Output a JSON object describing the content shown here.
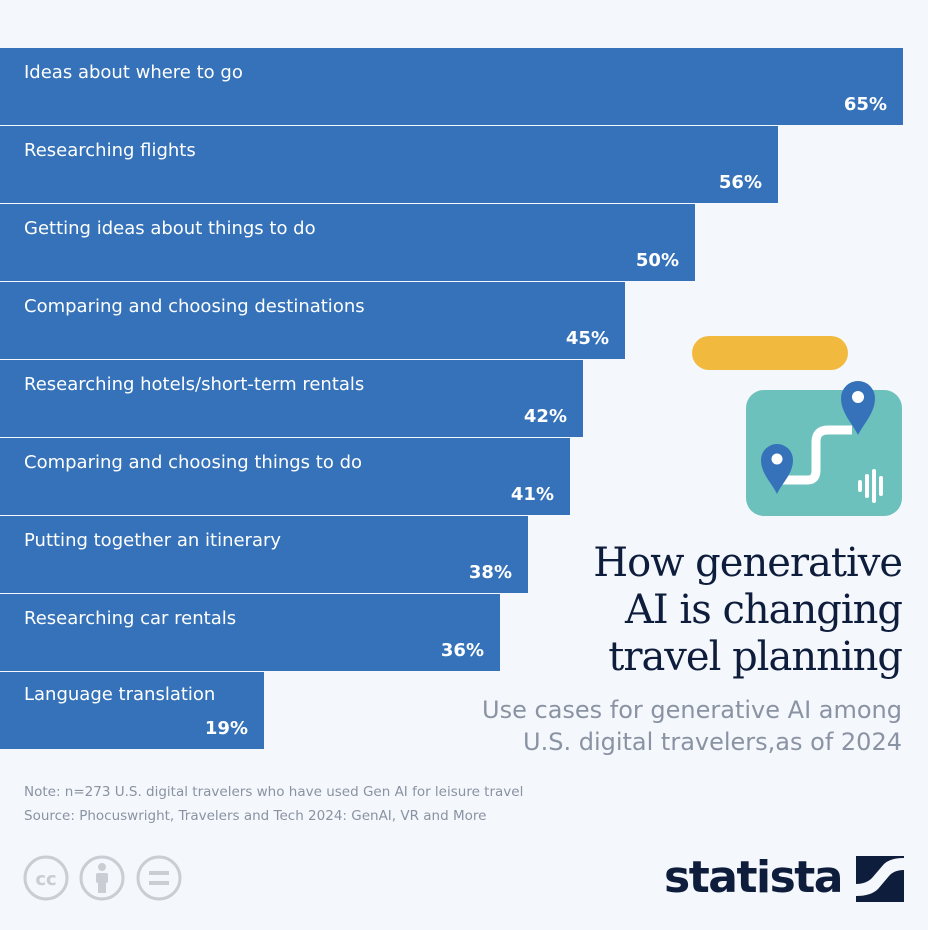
{
  "chart_data": {
    "type": "bar",
    "orientation": "horizontal",
    "categories": [
      "Ideas about where to go",
      "Researching flights",
      "Getting ideas about things to do",
      "Comparing and choosing destinations",
      "Researching hotels/short-term rentals",
      "Comparing and choosing things to do",
      "Putting together an itinerary",
      "Researching car rentals",
      "Language translation"
    ],
    "values": [
      65,
      56,
      50,
      45,
      42,
      41,
      38,
      36,
      19
    ],
    "value_labels": [
      "65%",
      "56%",
      "50%",
      "45%",
      "42%",
      "41%",
      "38%",
      "36%",
      "19%"
    ],
    "unit": "%",
    "bar_color": "#3572b9",
    "title": "How generative AI is changing travel planning",
    "subtitle": "Use cases for generative AI among U.S. digital travelers,as of 2024"
  },
  "title_lines": [
    "How generative",
    "AI is changing",
    "travel planning"
  ],
  "subtitle_lines": [
    "Use cases for generative AI among",
    "U.S. digital travelers,as of 2024"
  ],
  "note": "Note: n=273 U.S. digital travelers who have used Gen AI for leisure travel",
  "source": "Source: Phocuswright, Travelers and Tech 2024: GenAI, VR and More",
  "brand": {
    "name": "statista",
    "text_color": "#0f1d3d"
  },
  "license_icons": [
    "creative-commons-icon",
    "attribution-icon",
    "no-derivatives-icon"
  ],
  "illustration_icons": [
    "speech-bubble-icon",
    "map-route-icon",
    "location-pin-icon",
    "soundwave-icon"
  ],
  "colors": {
    "background": "#f4f7fb",
    "bar": "#3572b9",
    "title": "#0f1d3d",
    "muted": "#8a93a3",
    "accent_yellow": "#f2b93f",
    "accent_teal": "#6cc1bc"
  }
}
